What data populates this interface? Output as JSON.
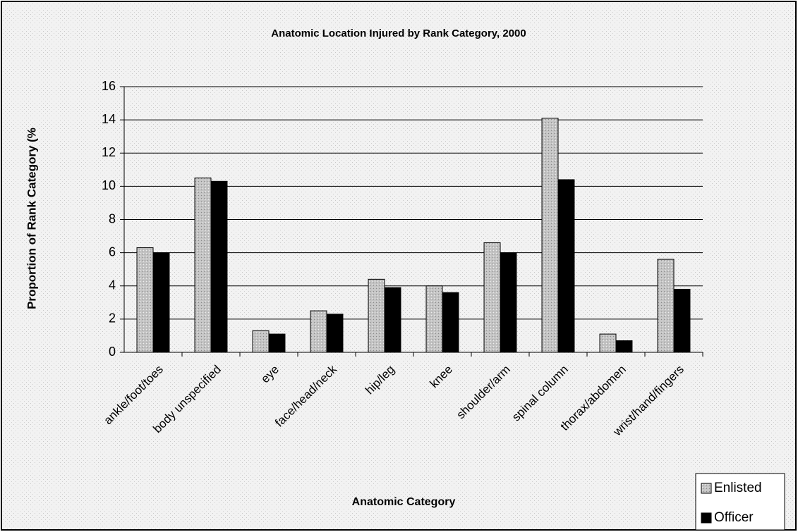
{
  "chart_data": {
    "type": "bar",
    "title": "Anatomic Location Injured by Rank Category, 2000",
    "x_label": "Anatomic Category",
    "y_label": "Proportion of Rank Category (%",
    "categories": [
      "ankle/foot/toes",
      "body unspecified",
      "eye",
      "face/head/neck",
      "hip/leg",
      "knee",
      "shoulder/arm",
      "spinal column",
      "thorax/abdomen",
      "wrist/hand/fingers"
    ],
    "series": [
      {
        "name": "Enlisted",
        "color": "#c4c4c4",
        "values": [
          6.3,
          10.5,
          1.3,
          2.5,
          4.4,
          4.0,
          6.6,
          14.1,
          1.1,
          5.6
        ]
      },
      {
        "name": "Officer",
        "color": "#000000",
        "values": [
          6.0,
          10.3,
          1.1,
          2.3,
          3.9,
          3.6,
          6.0,
          10.4,
          0.7,
          3.8
        ]
      }
    ],
    "ylim": [
      0,
      16
    ],
    "yticks": [
      0,
      2,
      4,
      6,
      8,
      10,
      12,
      14,
      16
    ],
    "grid": true,
    "legend": "bottom-right"
  }
}
